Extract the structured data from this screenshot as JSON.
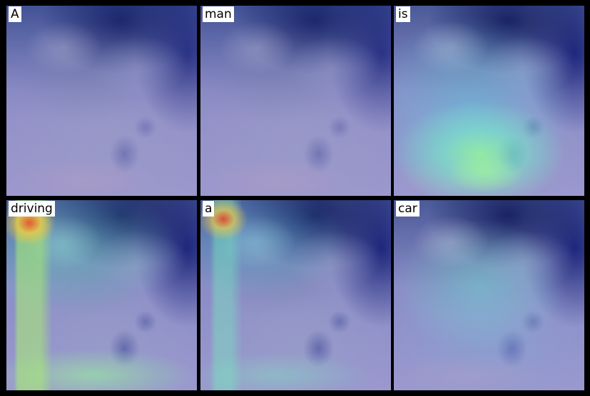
{
  "panels": [
    {
      "label": "A"
    },
    {
      "label": "man"
    },
    {
      "label": "is"
    },
    {
      "label": "driving"
    },
    {
      "label": "a"
    },
    {
      "label": "car"
    }
  ]
}
